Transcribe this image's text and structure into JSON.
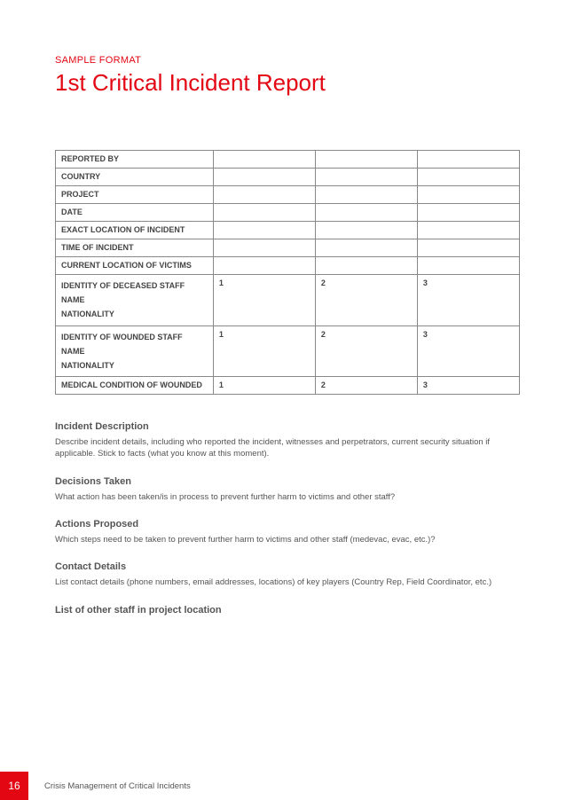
{
  "colors": {
    "accent": "#e30613",
    "text": "#555555",
    "border": "#888888",
    "background": "#ffffff"
  },
  "typography": {
    "title_fontsize": 26,
    "kicker_fontsize": 11,
    "table_fontsize": 9,
    "section_heading_fontsize": 11,
    "body_fontsize": 9.5
  },
  "header": {
    "kicker": "SAMPLE FORMAT",
    "title": "1st Critical Incident Report"
  },
  "table": {
    "type": "form-table",
    "column_widths": [
      "34%",
      "22%",
      "22%",
      "22%"
    ],
    "rows": [
      {
        "label": "REPORTED BY",
        "values": [
          "",
          "",
          ""
        ]
      },
      {
        "label": "COUNTRY",
        "values": [
          "",
          "",
          ""
        ]
      },
      {
        "label": "PROJECT",
        "values": [
          "",
          "",
          ""
        ]
      },
      {
        "label": "DATE",
        "values": [
          "",
          "",
          ""
        ]
      },
      {
        "label": "EXACT LOCATION OF INCIDENT",
        "values": [
          "",
          "",
          ""
        ]
      },
      {
        "label": "TIME OF INCIDENT",
        "values": [
          "",
          "",
          ""
        ]
      },
      {
        "label": "CURRENT LOCATION OF VICTIMS",
        "values": [
          "",
          "",
          ""
        ]
      },
      {
        "label_lines": [
          "IDENTITY OF DECEASED STAFF",
          "NAME",
          "NATIONALITY"
        ],
        "values": [
          "1",
          "2",
          "3"
        ]
      },
      {
        "label_lines": [
          "IDENTITY OF WOUNDED STAFF",
          "NAME",
          "NATIONALITY"
        ],
        "values": [
          "1",
          "2",
          "3"
        ]
      },
      {
        "label": "MEDICAL CONDITION OF WOUNDED",
        "values": [
          "1",
          "2",
          "3"
        ]
      }
    ]
  },
  "sections": [
    {
      "heading": "Incident Description",
      "body": "Describe incident details, including who reported the incident, witnesses and perpetrators, current security situation if applicable. Stick to facts (what you know at this moment)."
    },
    {
      "heading": "Decisions Taken",
      "body": "What action has been taken/is in process to prevent further harm to victims and other staff?"
    },
    {
      "heading": "Actions Proposed",
      "body": "Which steps need to be taken to prevent further harm to victims and other staff (medevac, evac, etc.)?"
    },
    {
      "heading": "Contact Details",
      "body": "List contact details (phone numbers, email addresses, locations) of key players (Country Rep, Field Coordinator, etc.)"
    },
    {
      "heading": "List of other staff in project location",
      "body": ""
    }
  ],
  "footer": {
    "page_number": "16",
    "doc_title": "Crisis Management of Critical Incidents"
  }
}
